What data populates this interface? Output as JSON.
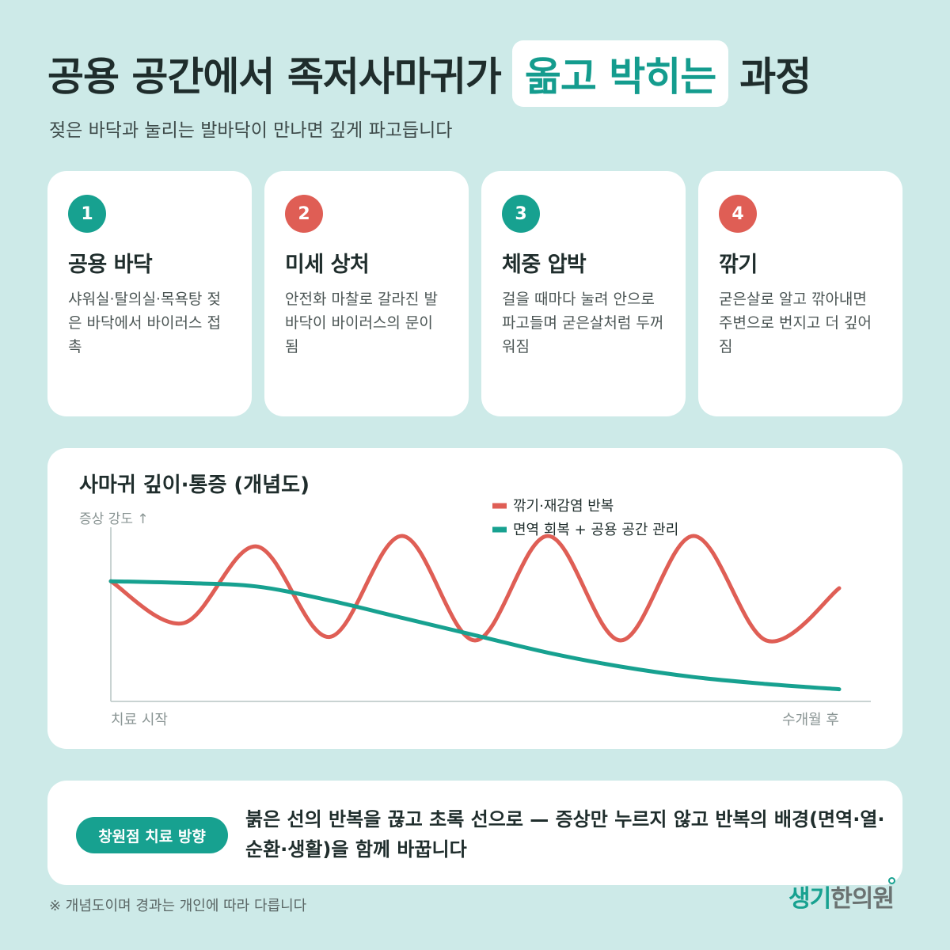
{
  "header": {
    "title_pre": "공용 공간에서 족저사마귀가",
    "title_highlight": "옮고 박히는",
    "title_post": "과정",
    "subtitle": "젖은 바닥과 눌리는 발바닥이 만나면 깊게 파고듭니다"
  },
  "steps": [
    {
      "num": "1",
      "title": "공용 바닥",
      "desc": "샤워실·탈의실·목욕탕 젖은 바닥에서 바이러스 접촉",
      "color": "#17a190"
    },
    {
      "num": "2",
      "title": "미세 상처",
      "desc": "안전화 마찰로 갈라진 발바닥이 바이러스의 문이 됨",
      "color": "#df5e55"
    },
    {
      "num": "3",
      "title": "체중 압박",
      "desc": "걸을 때마다 눌려 안으로 파고들며 굳은살처럼 두꺼워짐",
      "color": "#17a190"
    },
    {
      "num": "4",
      "title": "깎기",
      "desc": "굳은살로 알고 깎아내면 주변으로 번지고 더 깊어짐",
      "color": "#df5e55"
    }
  ],
  "chart_data": {
    "type": "line",
    "title": "사마귀 깊이·통증 (개념도)",
    "ylabel": "증상 강도 ↑",
    "x_start_label": "치료 시작",
    "x_end_label": "수개월 후",
    "ylim": [
      0,
      1
    ],
    "x": [
      0,
      0.1,
      0.2,
      0.3,
      0.4,
      0.5,
      0.6,
      0.7,
      0.8,
      0.9,
      1.0
    ],
    "series": [
      {
        "name": "깎기·재감염 반복",
        "color": "#df5e55",
        "values": [
          0.69,
          0.45,
          0.89,
          0.37,
          0.95,
          0.35,
          0.95,
          0.35,
          0.95,
          0.35,
          0.65
        ]
      },
      {
        "name": "면역 회복 + 공용 공간 관리",
        "color": "#17a190",
        "values": [
          0.69,
          0.68,
          0.66,
          0.58,
          0.48,
          0.38,
          0.28,
          0.2,
          0.14,
          0.1,
          0.07
        ]
      }
    ],
    "legend": "top-right",
    "grid": false
  },
  "bottom": {
    "pill": "창원점 치료 방향",
    "text": "붉은 선의 반복을 끊고 초록 선으로 — 증상만 누르지 않고 반복의 배경(면역·열·순환·생활)을 함께 바꿉니다"
  },
  "footnote": "※ 개념도이며 경과는 개인에 따라 다릅니다",
  "logo": {
    "part_a": "생기",
    "part_b": "한의원"
  }
}
